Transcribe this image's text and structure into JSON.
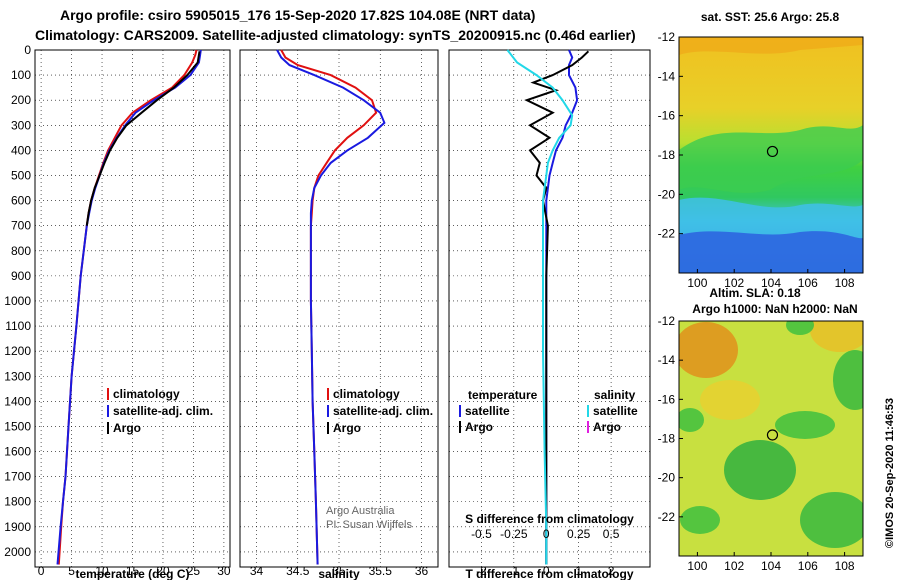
{
  "header": {
    "line1": "Argo profile: csiro 5905015_176 15-Sep-2020 17.82S 104.08E (NRT data)",
    "line2": "Climatology: CARS2009. Satellite-adjusted climatology: synTS_20200915.nc (0.46d earlier)"
  },
  "colors": {
    "climatology": "#e01010",
    "satellite": "#1a1ae0",
    "argo": "#000000",
    "salinity_satellite": "#22d8e8",
    "salinity_argo": "#e020e0"
  },
  "chart_data": [
    {
      "type": "line",
      "id": "temperature",
      "xlabel": "temperature (deg C)",
      "xlim": [
        -1,
        31
      ],
      "xticks": [
        0,
        5,
        10,
        15,
        20,
        25,
        30
      ],
      "ylim": [
        2060,
        0
      ],
      "yticks": [
        0,
        100,
        200,
        300,
        400,
        500,
        600,
        700,
        800,
        900,
        1000,
        1100,
        1200,
        1300,
        1400,
        1500,
        1600,
        1700,
        1800,
        1900,
        2000
      ],
      "legend": [
        "climatology",
        "satellite-adj. clim.",
        "Argo"
      ],
      "series": [
        {
          "name": "climatology",
          "color": "#e01010",
          "x": [
            25.5,
            25.3,
            24.8,
            23.5,
            21.5,
            18,
            15,
            13.2,
            12.1,
            11,
            10.2,
            9.5,
            8.8,
            8.2,
            7.8,
            7.5,
            6.5,
            5.8,
            5,
            4.5,
            4,
            3.6,
            3.3,
            2.9
          ],
          "y": [
            0,
            20,
            50,
            100,
            150,
            200,
            250,
            300,
            350,
            400,
            450,
            500,
            550,
            600,
            650,
            700,
            900,
            1100,
            1300,
            1500,
            1700,
            1800,
            1900,
            2050
          ]
        },
        {
          "name": "satellite-adj. clim.",
          "color": "#1a1ae0",
          "x": [
            26.2,
            26.1,
            25.9,
            24.5,
            22,
            18.5,
            15.5,
            13.8,
            12.4,
            11.2,
            10.3,
            9.6,
            8.9,
            8.3,
            7.9,
            7.5,
            6.5,
            5.8,
            5,
            4.5,
            4,
            3.6,
            3.2,
            2.7
          ],
          "y": [
            0,
            20,
            50,
            100,
            150,
            200,
            250,
            300,
            350,
            400,
            450,
            500,
            550,
            600,
            650,
            700,
            900,
            1100,
            1300,
            1500,
            1700,
            1800,
            1900,
            2050
          ]
        },
        {
          "name": "Argo",
          "color": "#000000",
          "x": [
            26,
            25.9,
            25.7,
            24,
            21.8,
            19,
            16.5,
            14,
            12.5,
            11.3,
            10.4,
            9.6,
            8.8,
            8.2,
            7.8,
            7.5
          ],
          "y": [
            5,
            20,
            50,
            100,
            150,
            200,
            250,
            300,
            350,
            400,
            450,
            500,
            550,
            600,
            650,
            700
          ]
        }
      ]
    },
    {
      "type": "line",
      "id": "salinity",
      "xlabel": "salinity",
      "xlim": [
        33.8,
        36.2
      ],
      "xticks": [
        34,
        34.5,
        35,
        35.5,
        36
      ],
      "ylim": [
        2060,
        0
      ],
      "legend": [
        "climatology",
        "satellite-adj. clim.",
        "Argo"
      ],
      "annotations": [
        "Argo Australia",
        "PI: Susan Wijffels"
      ],
      "series": [
        {
          "name": "climatology",
          "color": "#e01010",
          "x": [
            34.3,
            34.35,
            34.5,
            34.9,
            35.2,
            35.4,
            35.45,
            35.3,
            35.1,
            34.95,
            34.85,
            34.75,
            34.7,
            34.68,
            34.67,
            34.66,
            34.66,
            34.66,
            34.67,
            34.68,
            34.7,
            34.72,
            34.74
          ],
          "y": [
            0,
            30,
            60,
            100,
            150,
            200,
            250,
            300,
            350,
            400,
            450,
            500,
            550,
            600,
            650,
            700,
            800,
            1000,
            1200,
            1400,
            1600,
            1800,
            2050
          ]
        },
        {
          "name": "satellite-adj. clim.",
          "color": "#1a1ae0",
          "x": [
            34.25,
            34.3,
            34.4,
            34.7,
            35.05,
            35.3,
            35.5,
            35.55,
            35.35,
            35.1,
            34.9,
            34.78,
            34.7,
            34.67,
            34.66,
            34.66,
            34.66,
            34.66,
            34.67,
            34.68,
            34.7,
            34.72,
            34.74
          ],
          "y": [
            0,
            30,
            60,
            100,
            150,
            200,
            250,
            290,
            350,
            400,
            450,
            500,
            550,
            600,
            650,
            700,
            800,
            1000,
            1200,
            1400,
            1600,
            1800,
            2050
          ]
        }
      ]
    },
    {
      "type": "line",
      "id": "differences",
      "xlabel": "T difference from climatology",
      "xlabel2": "S difference from climatology",
      "xlim": [
        -3,
        3.2
      ],
      "xticks": [
        -2,
        -1,
        0,
        1,
        2
      ],
      "xticks2": [
        -0.5,
        -0.25,
        0,
        0.25,
        0.5
      ],
      "ylim": [
        2060,
        0
      ],
      "legend_titles": [
        "temperature",
        "salinity"
      ],
      "legend": [
        "satellite",
        "Argo",
        "satellite",
        "Argo"
      ],
      "series": [
        {
          "name": "satellite",
          "group": "temperature",
          "color": "#1a1ae0",
          "x": [
            0.7,
            0.8,
            0.7,
            0.7,
            0.9,
            0.95,
            0.8,
            0.6,
            0.5,
            0.3,
            0.2,
            0.1,
            0.05,
            0,
            0,
            0,
            0,
            0,
            0
          ],
          "y": [
            0,
            30,
            60,
            100,
            150,
            200,
            250,
            300,
            350,
            400,
            450,
            500,
            550,
            600,
            700,
            900,
            1200,
            1600,
            2050
          ]
        },
        {
          "name": "Argo",
          "group": "temperature",
          "color": "#000000",
          "x": [
            1.3,
            1.1,
            0.8,
            0.2,
            -0.4,
            0.3,
            -0.6,
            0.2,
            -0.5,
            0.1,
            -0.5,
            -0.2,
            -0.3,
            0,
            -0.1,
            0.05,
            0,
            0,
            0,
            0
          ],
          "y": [
            5,
            30,
            60,
            100,
            130,
            160,
            200,
            250,
            300,
            350,
            400,
            450,
            500,
            550,
            600,
            700,
            900,
            1200,
            1600,
            2050
          ]
        },
        {
          "name": "satellite",
          "group": "salinity",
          "color": "#22d8e8",
          "x": [
            -1.2,
            -0.9,
            -0.3,
            0.2,
            0.5,
            0.8,
            0.75,
            0.4,
            0.2,
            0.05,
            0,
            -0.05,
            -0.1,
            -0.1,
            -0.1,
            -0.05,
            0,
            0
          ],
          "y": [
            0,
            50,
            100,
            150,
            200,
            260,
            300,
            350,
            400,
            450,
            500,
            550,
            600,
            800,
            1200,
            1600,
            1900,
            2050
          ]
        }
      ]
    },
    {
      "type": "heatmap",
      "id": "sst",
      "title": "sat. SST: 25.6 Argo: 25.8",
      "xlim": [
        99,
        109
      ],
      "xticks": [
        100,
        102,
        104,
        106,
        108
      ],
      "ylim": [
        -24,
        -12
      ],
      "yticks": [
        -12,
        -14,
        -16,
        -18,
        -20,
        -22
      ],
      "marker": {
        "lon": 104.08,
        "lat": -17.82
      }
    },
    {
      "type": "heatmap",
      "id": "sla",
      "title": "Altim. SLA: 0.18",
      "title2": "Argo h1000: NaN h2000: NaN",
      "xlim": [
        99,
        109
      ],
      "xticks": [
        100,
        102,
        104,
        106,
        108
      ],
      "ylim": [
        -24,
        -12
      ],
      "yticks": [
        -12,
        -14,
        -16,
        -18,
        -20,
        -22
      ],
      "marker": {
        "lon": 104.08,
        "lat": -17.82
      }
    }
  ],
  "side_stamp": "©IMOS 20-Sep-2020 11:46:53"
}
